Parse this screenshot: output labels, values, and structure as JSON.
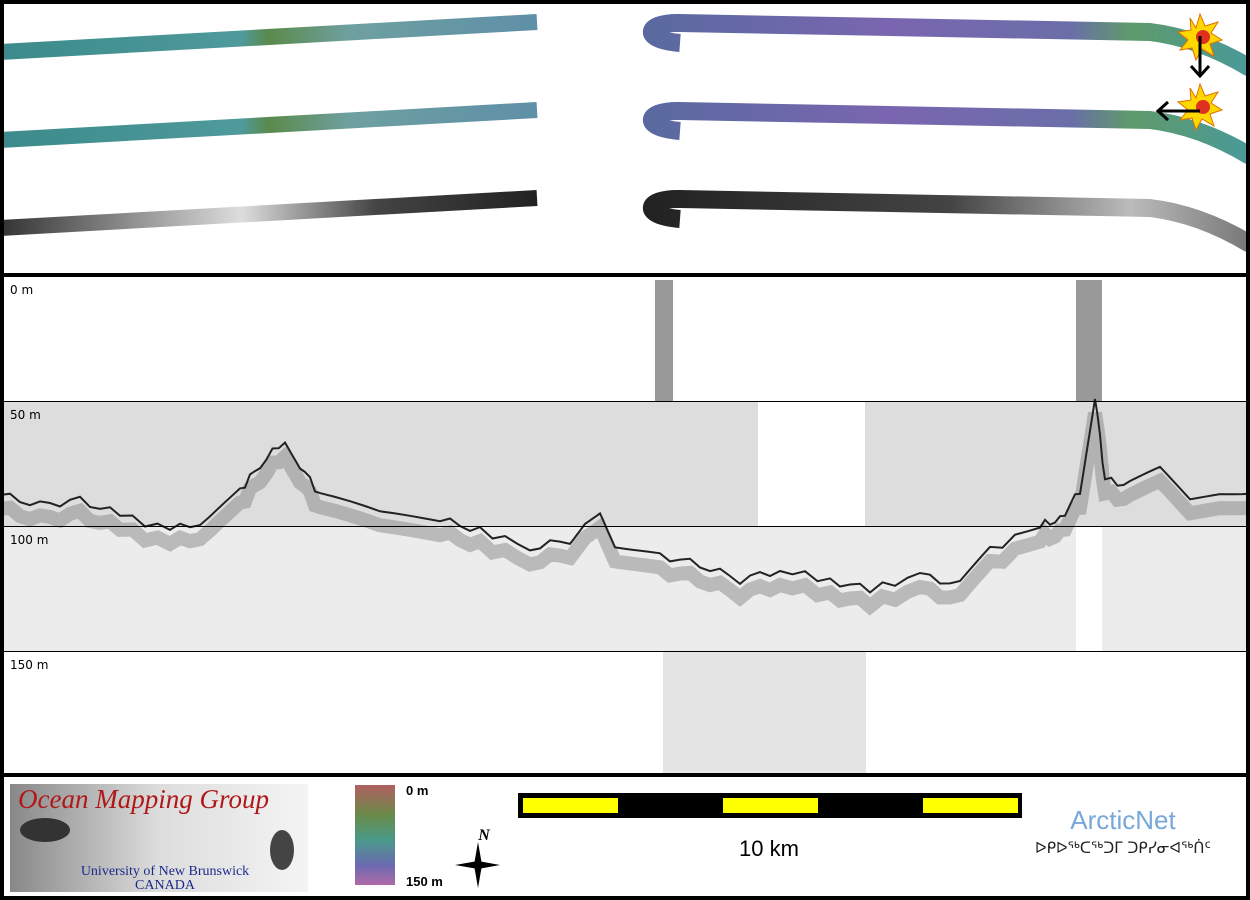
{
  "depth_labels": [
    "0 m",
    "50 m",
    "100 m",
    "150 m"
  ],
  "logo": {
    "title": "Ocean Mapping Group",
    "university": "University of New Brunswick",
    "country": "CANADA"
  },
  "color_scale": {
    "top": "0 m",
    "bottom": "150 m"
  },
  "compass": "N",
  "scale_bar": "10 km",
  "partner": {
    "name": "ArcticNet",
    "syllabics": "ᐅᑭᐅᖅᑕᖅᑐᒥ ᑐᑭᓯᓂᐊᖅᑏᑦ"
  }
}
